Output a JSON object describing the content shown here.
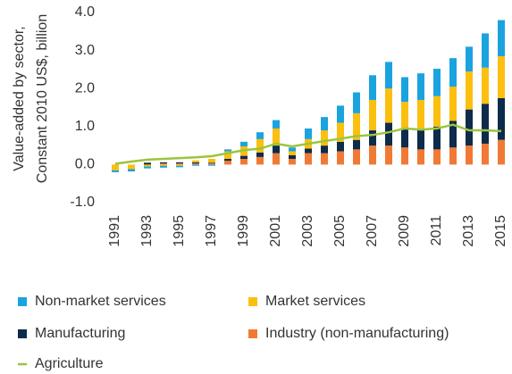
{
  "chart_data": {
    "type": "bar",
    "ylabel": [
      "Value-added by sector,",
      "Constant 2010 US$, billion"
    ],
    "categories": [
      "1991",
      null,
      "1993",
      null,
      "1995",
      null,
      "1997",
      null,
      "1999",
      null,
      "2001",
      null,
      "2003",
      null,
      "2005",
      null,
      "2007",
      null,
      "2009",
      null,
      "2011",
      null,
      "2013",
      null,
      "2015"
    ],
    "ylim": [
      -1,
      4
    ],
    "yticks": [
      {
        "value": -1,
        "label": "-1.0"
      },
      {
        "value": 0,
        "label": "0.0"
      },
      {
        "value": 1,
        "label": "1.0"
      },
      {
        "value": 2,
        "label": "2.0"
      },
      {
        "value": 3,
        "label": "3.0"
      },
      {
        "value": 4,
        "label": "4.0"
      }
    ],
    "series": [
      {
        "name": "Non-market services",
        "color": "#1ba3e0",
        "kind": "bar",
        "values": [
          -0.05,
          -0.06,
          -0.05,
          -0.05,
          -0.04,
          -0.03,
          -0.03,
          0.05,
          0.12,
          0.18,
          0.22,
          0.1,
          0.28,
          0.35,
          0.45,
          0.55,
          0.65,
          0.7,
          0.65,
          0.7,
          0.72,
          0.75,
          0.65,
          0.9,
          0.95
        ]
      },
      {
        "name": "Market services",
        "color": "#fbbf0f",
        "kind": "bar",
        "values": [
          -0.15,
          -0.12,
          -0.05,
          -0.03,
          -0.03,
          0.05,
          0.1,
          0.2,
          0.25,
          0.35,
          0.45,
          0.1,
          0.25,
          0.4,
          0.5,
          0.7,
          0.8,
          0.9,
          0.7,
          0.75,
          0.8,
          0.9,
          1.0,
          0.95,
          1.1
        ]
      },
      {
        "name": "Manufacturing",
        "color": "#0d2b4a",
        "kind": "bar",
        "values": [
          0,
          0,
          0.05,
          0.03,
          0.03,
          0.03,
          0.02,
          0.05,
          0.08,
          0.12,
          0.2,
          0.1,
          0.12,
          0.2,
          0.25,
          0.25,
          0.4,
          0.6,
          0.5,
          0.55,
          0.6,
          0.7,
          0.95,
          1.05,
          1.1
        ]
      },
      {
        "name": "Industry (non-manufacturing)",
        "color": "#f07a35",
        "kind": "bar",
        "values": [
          0,
          0,
          0,
          0.03,
          0.03,
          0.03,
          0.03,
          0.1,
          0.15,
          0.2,
          0.3,
          0.15,
          0.3,
          0.3,
          0.35,
          0.4,
          0.5,
          0.5,
          0.45,
          0.4,
          0.4,
          0.45,
          0.5,
          0.55,
          0.65
        ]
      },
      {
        "name": "Agriculture",
        "color": "#9bc53d",
        "kind": "line",
        "values": [
          0.02,
          0.08,
          0.13,
          0.15,
          0.17,
          0.19,
          0.22,
          0.3,
          0.38,
          0.42,
          0.55,
          0.48,
          0.55,
          0.62,
          0.68,
          0.75,
          0.78,
          0.85,
          0.95,
          0.92,
          0.95,
          1.05,
          0.9,
          0.9,
          0.88
        ]
      }
    ]
  }
}
